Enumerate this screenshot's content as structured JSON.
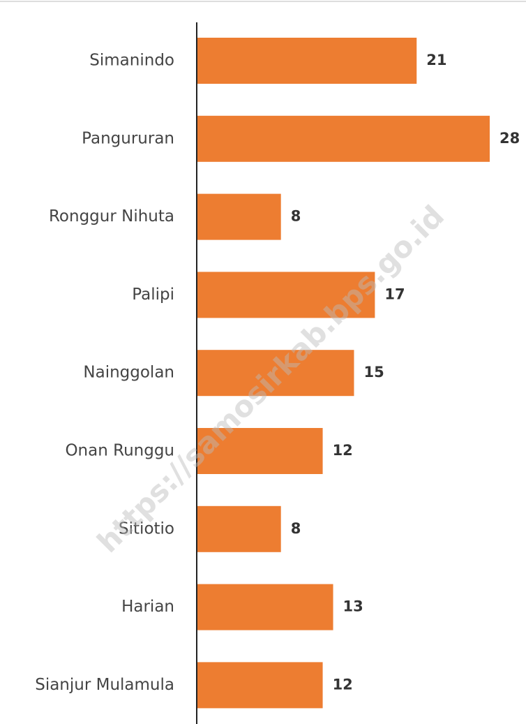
{
  "chart_data": {
    "type": "bar",
    "orientation": "horizontal",
    "categories": [
      "Simanindo",
      "Pangururan",
      "Ronggur Nihuta",
      "Palipi",
      "Nainggolan",
      "Onan Runggu",
      "Sitiotio",
      "Harian",
      "Sianjur Mulamula"
    ],
    "values": [
      21,
      28,
      8,
      17,
      15,
      12,
      8,
      13,
      12
    ],
    "color": "#ed7d31",
    "watermark": "https://samosirkab.bps.go.id"
  }
}
